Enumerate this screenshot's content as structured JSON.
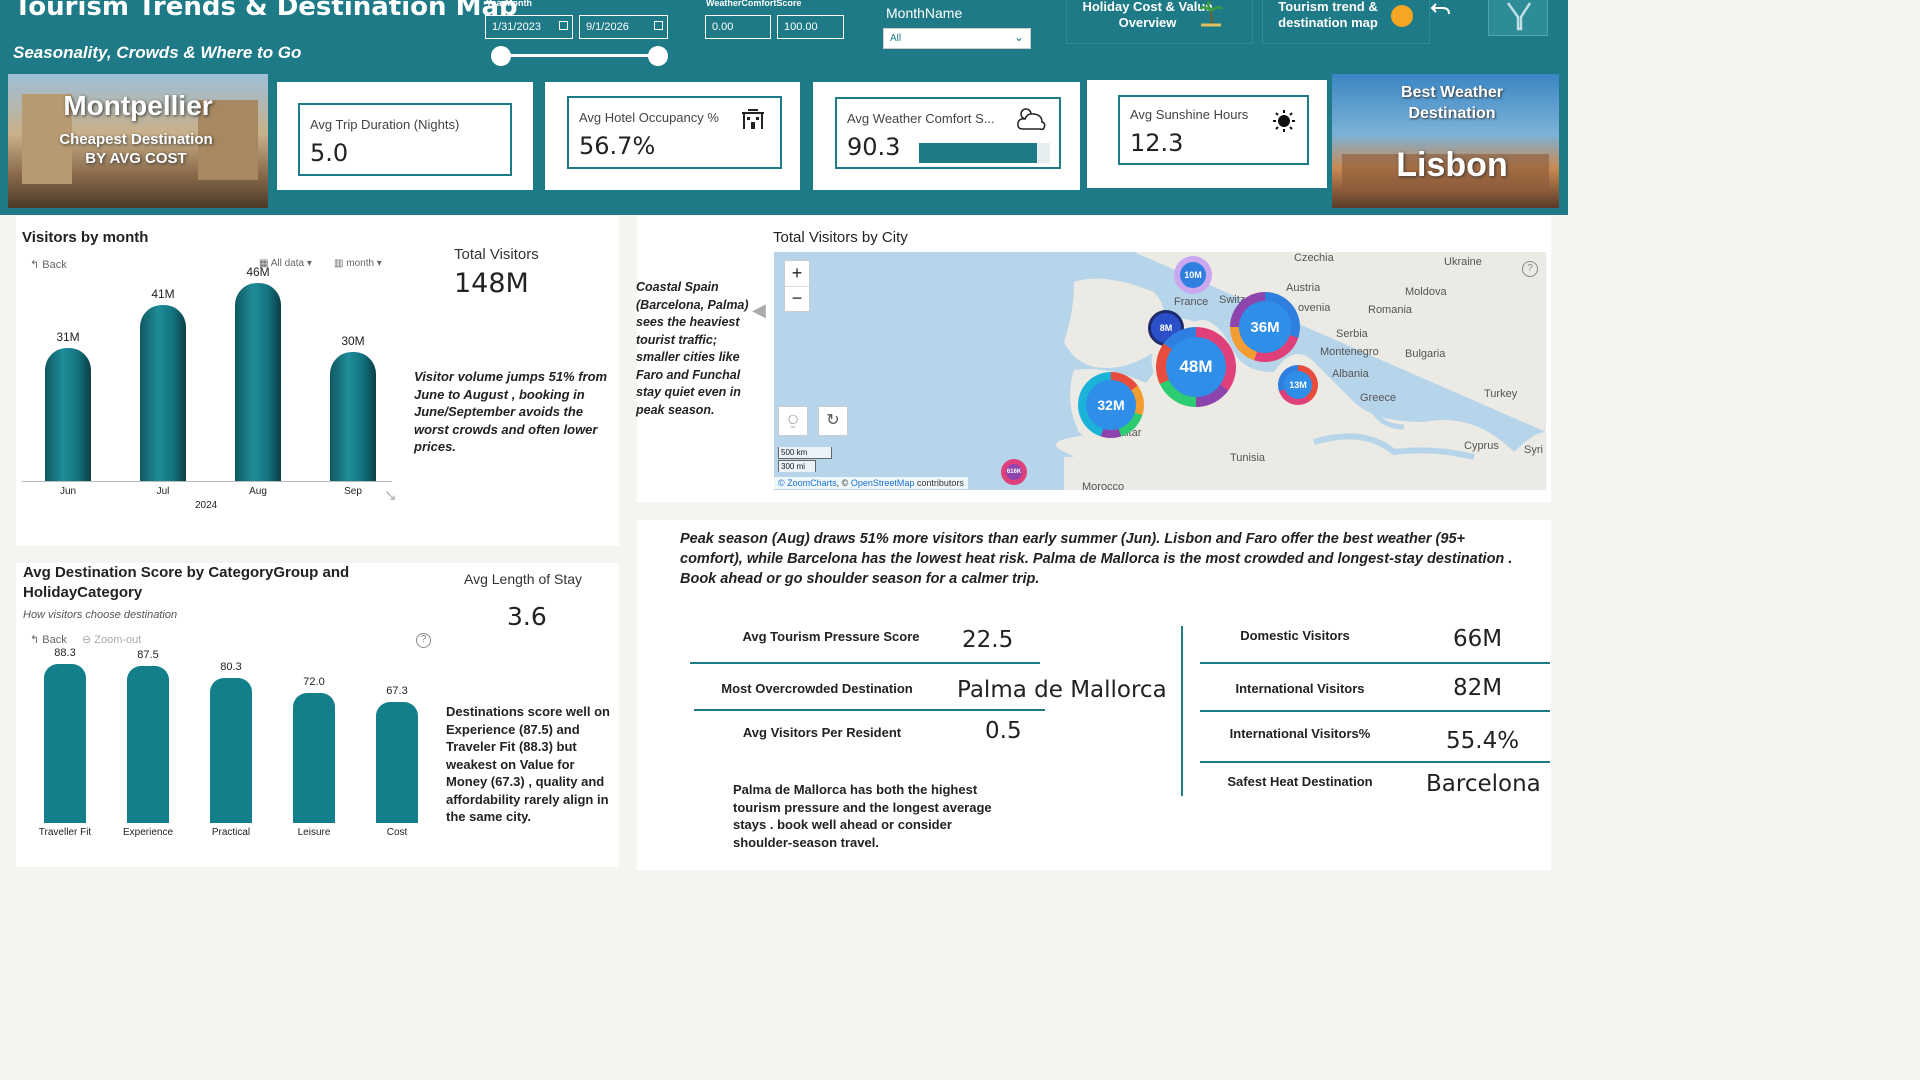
{
  "header": {
    "title": "Tourism Trends & Destination Map",
    "subtitle": "Seasonality, Crowds & Where to Go"
  },
  "slicers": {
    "yearmonth": {
      "label": "YearMonth",
      "start": "1/31/2023",
      "end": "9/1/2026",
      "range_start_fraction": 0.0,
      "range_end_fraction": 1.0
    },
    "weather": {
      "label": "WeatherComfortScore",
      "min": "0.00",
      "max": "100.00"
    },
    "month": {
      "label": "MonthName",
      "value": "All"
    }
  },
  "nav": {
    "holiday_cost": "Holiday Cost & Value Overview",
    "trend_map": "Tourism trend & destination map"
  },
  "colors": {
    "teal": "#1e7a86",
    "accent_orange": "#f5a623"
  },
  "cheapest_card": {
    "city": "Montpellier",
    "caption": "Cheapest Destination BY AVG COST"
  },
  "best_weather_card": {
    "caption": "Best Weather Destination",
    "city": "Lisbon"
  },
  "kpis": {
    "trip_duration": {
      "label": "Avg Trip Duration (Nights)",
      "value": "5.0"
    },
    "hotel_occupancy": {
      "label": "Avg Hotel Occupancy %",
      "value": "56.7%"
    },
    "weather_comfort": {
      "label": "Avg Weather Comfort S...",
      "value": "90.3",
      "level": 0.903
    },
    "sunshine": {
      "label": "Avg Sunshine Hours",
      "value": "12.3"
    }
  },
  "visitors_by_month": {
    "title": "Visitors by month",
    "back": "Back",
    "all_data": "All data",
    "month": "month",
    "year": "2024",
    "total_label": "Total Visitors",
    "total_value": "148M",
    "note": "Visitor volume jumps 51% from June to August , booking in June/September avoids the worst crowds and often lower prices."
  },
  "map": {
    "title": "Total Visitors by City",
    "zoom_in": "+",
    "zoom_out": "−",
    "scale_km": "500 km",
    "scale_mi": "300 mi",
    "attribution_zc": "© ZoomCharts",
    "attribution_sep": ", ©",
    "attribution_osm": "OpenStreetMap",
    "attribution_rest": "contributors",
    "note": "Coastal Spain (Barcelona, Palma) sees the heaviest tourist traffic; smaller cities like Faro and Funchal stay quiet even in peak season.",
    "places": [
      "Czechia",
      "Ukraine",
      "Austria",
      "France",
      "Switz",
      "Moldova",
      "Romania",
      "ovenia",
      "Serbia",
      "Montenegro",
      "Bulgaria",
      "Albania",
      "Greece",
      "Turkey",
      "Cyprus",
      "Syri",
      "Tunisia",
      "Morocco",
      "altar",
      "aly"
    ],
    "bubbles": [
      "10M",
      "8M",
      "36M",
      "48M",
      "13M",
      "32M",
      "616K"
    ]
  },
  "dest_score": {
    "title_line1": "Avg Destination Score by CategoryGroup and",
    "title_line2": "HolidayCategory",
    "subtitle": "How visitors choose destination",
    "back": "Back",
    "zoom_out": "Zoom-out",
    "los_label": "Avg Length of Stay",
    "los_value": "3.6",
    "note": "Destinations score well on Experience (87.5) and Traveler Fit (88.3) but weakest on Value for Money (67.3) , quality and affordability rarely align in the same city."
  },
  "summary": {
    "text": "Peak season (Aug) draws 51% more visitors than early summer (Jun). Lisbon and Faro offer the best weather (95+ comfort), while Barcelona has the lowest heat risk. Palma de Mallorca is the most crowded and longest-stay destination . Book ahead or go shoulder season for a calmer trip.",
    "pressure_label": "Avg Tourism Pressure Score",
    "pressure_value": "22.5",
    "overcrowded_label": "Most Overcrowded Destination",
    "overcrowded_value": "Palma de Mallorca",
    "per_resident_label": "Avg Visitors Per Resident",
    "per_resident_value": "0.5",
    "note": "Palma de Mallorca has both the highest tourism pressure and the longest average stays . book well ahead or consider shoulder-season travel.",
    "domestic_label": "Domestic Visitors",
    "domestic_value": "66M",
    "intl_label": "International Visitors",
    "intl_value": "82M",
    "intl_pct_label": "International Visitors%",
    "intl_pct_value": "55.4%",
    "heat_label": "Safest Heat Destination",
    "heat_value": "Barcelona"
  },
  "chart_data": [
    {
      "type": "bar",
      "title": "Visitors by month",
      "categories": [
        "Jun",
        "Jul",
        "Aug",
        "Sep"
      ],
      "values": [
        31,
        41,
        46,
        30
      ],
      "value_labels": [
        "31M",
        "41M",
        "46M",
        "30M"
      ],
      "xlabel": "2024",
      "ylim": [
        0,
        50
      ]
    },
    {
      "type": "bar",
      "title": "Avg Destination Score by CategoryGroup and HolidayCategory",
      "categories": [
        "Traveller Fit",
        "Experience",
        "Practical",
        "Leisure",
        "Cost"
      ],
      "values": [
        88.3,
        87.5,
        80.3,
        72.0,
        67.3
      ],
      "value_labels": [
        "88.3",
        "87.5",
        "80.3",
        "72.0",
        "67.3"
      ],
      "ylim": [
        0,
        100
      ]
    }
  ]
}
